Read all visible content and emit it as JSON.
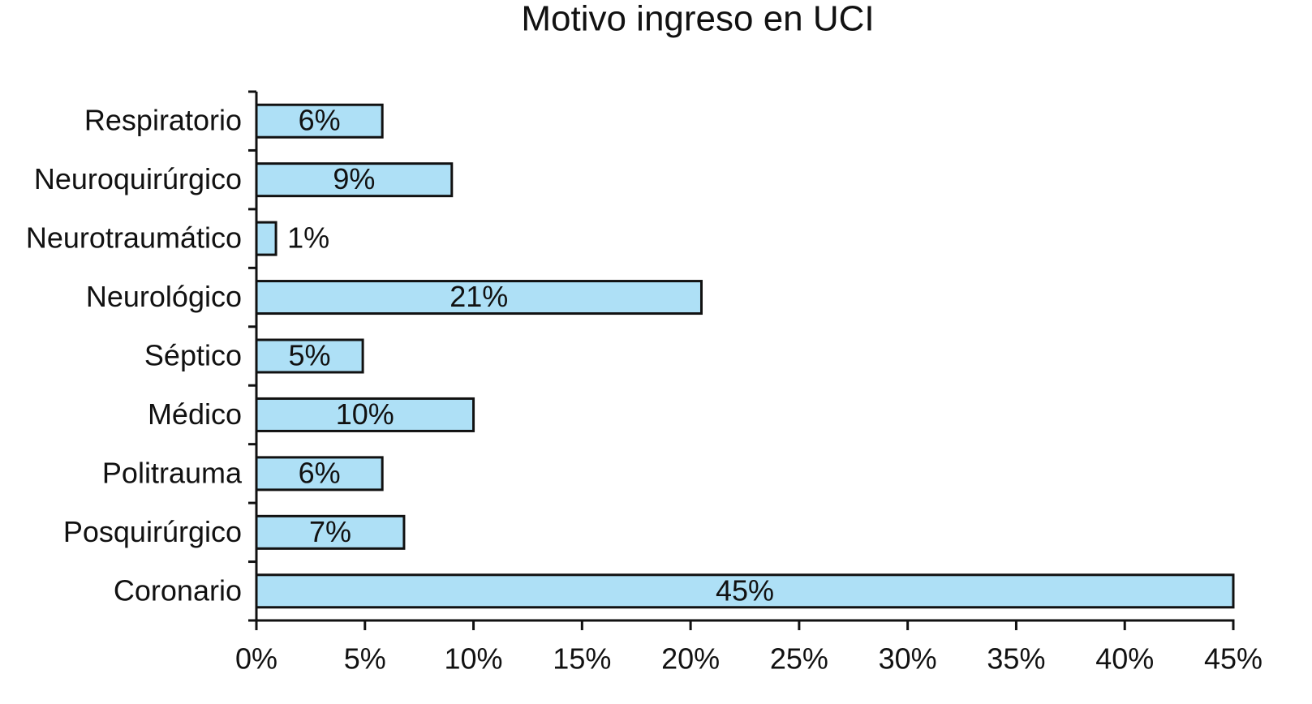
{
  "chart_data": {
    "type": "bar",
    "orientation": "horizontal",
    "title": "Motivo ingreso en UCI",
    "categories": [
      "Respiratorio",
      "Neuroquirúrgico",
      "Neurotraumático",
      "Neurológico",
      "Séptico",
      "Médico",
      "Politrauma",
      "Posquirúrgico",
      "Coronario"
    ],
    "values": [
      5.8,
      9.0,
      0.9,
      20.5,
      4.9,
      10.0,
      5.8,
      6.8,
      45
    ],
    "value_labels": [
      "6%",
      "9%",
      "1%",
      "21%",
      "5%",
      "10%",
      "6%",
      "7%",
      "45%"
    ],
    "color": "#aee0f6",
    "xlim": [
      0,
      45
    ],
    "xticks": [
      {
        "value": 0,
        "label": "0%"
      },
      {
        "value": 5,
        "label": "5%"
      },
      {
        "value": 10,
        "label": "10%"
      },
      {
        "value": 15,
        "label": "15%"
      },
      {
        "value": 20,
        "label": "20%"
      },
      {
        "value": 25,
        "label": "25%"
      },
      {
        "value": 30,
        "label": "30%"
      },
      {
        "value": 35,
        "label": "35%"
      },
      {
        "value": 40,
        "label": "40%"
      },
      {
        "value": 45,
        "label": "45%"
      }
    ],
    "grid": false
  }
}
